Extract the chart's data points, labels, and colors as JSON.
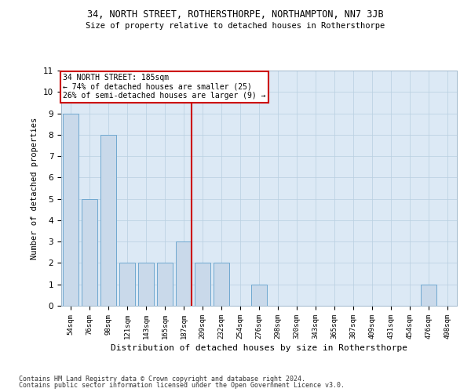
{
  "title1": "34, NORTH STREET, ROTHERSTHORPE, NORTHAMPTON, NN7 3JB",
  "title2": "Size of property relative to detached houses in Rothersthorpe",
  "xlabel": "Distribution of detached houses by size in Rothersthorpe",
  "ylabel": "Number of detached properties",
  "categories": [
    "54sqm",
    "76sqm",
    "98sqm",
    "121sqm",
    "143sqm",
    "165sqm",
    "187sqm",
    "209sqm",
    "232sqm",
    "254sqm",
    "276sqm",
    "298sqm",
    "320sqm",
    "343sqm",
    "365sqm",
    "387sqm",
    "409sqm",
    "431sqm",
    "454sqm",
    "476sqm",
    "498sqm"
  ],
  "values": [
    9,
    5,
    8,
    2,
    2,
    2,
    3,
    2,
    2,
    0,
    1,
    0,
    0,
    0,
    0,
    0,
    0,
    0,
    0,
    1,
    0
  ],
  "bar_color": "#c9d9ea",
  "bar_edge_color": "#6fa8d0",
  "vline_index": 6,
  "vline_color": "#cc0000",
  "annotation_title": "34 NORTH STREET: 185sqm",
  "annotation_line1": "← 74% of detached houses are smaller (25)",
  "annotation_line2": "26% of semi-detached houses are larger (9) →",
  "annotation_box_color": "#ffffff",
  "annotation_box_edge": "#cc0000",
  "ylim": [
    0,
    11
  ],
  "yticks": [
    0,
    1,
    2,
    3,
    4,
    5,
    6,
    7,
    8,
    9,
    10,
    11
  ],
  "footer1": "Contains HM Land Registry data © Crown copyright and database right 2024.",
  "footer2": "Contains public sector information licensed under the Open Government Licence v3.0.",
  "plot_bg_color": "#dce9f5",
  "fig_bg_color": "#ffffff"
}
